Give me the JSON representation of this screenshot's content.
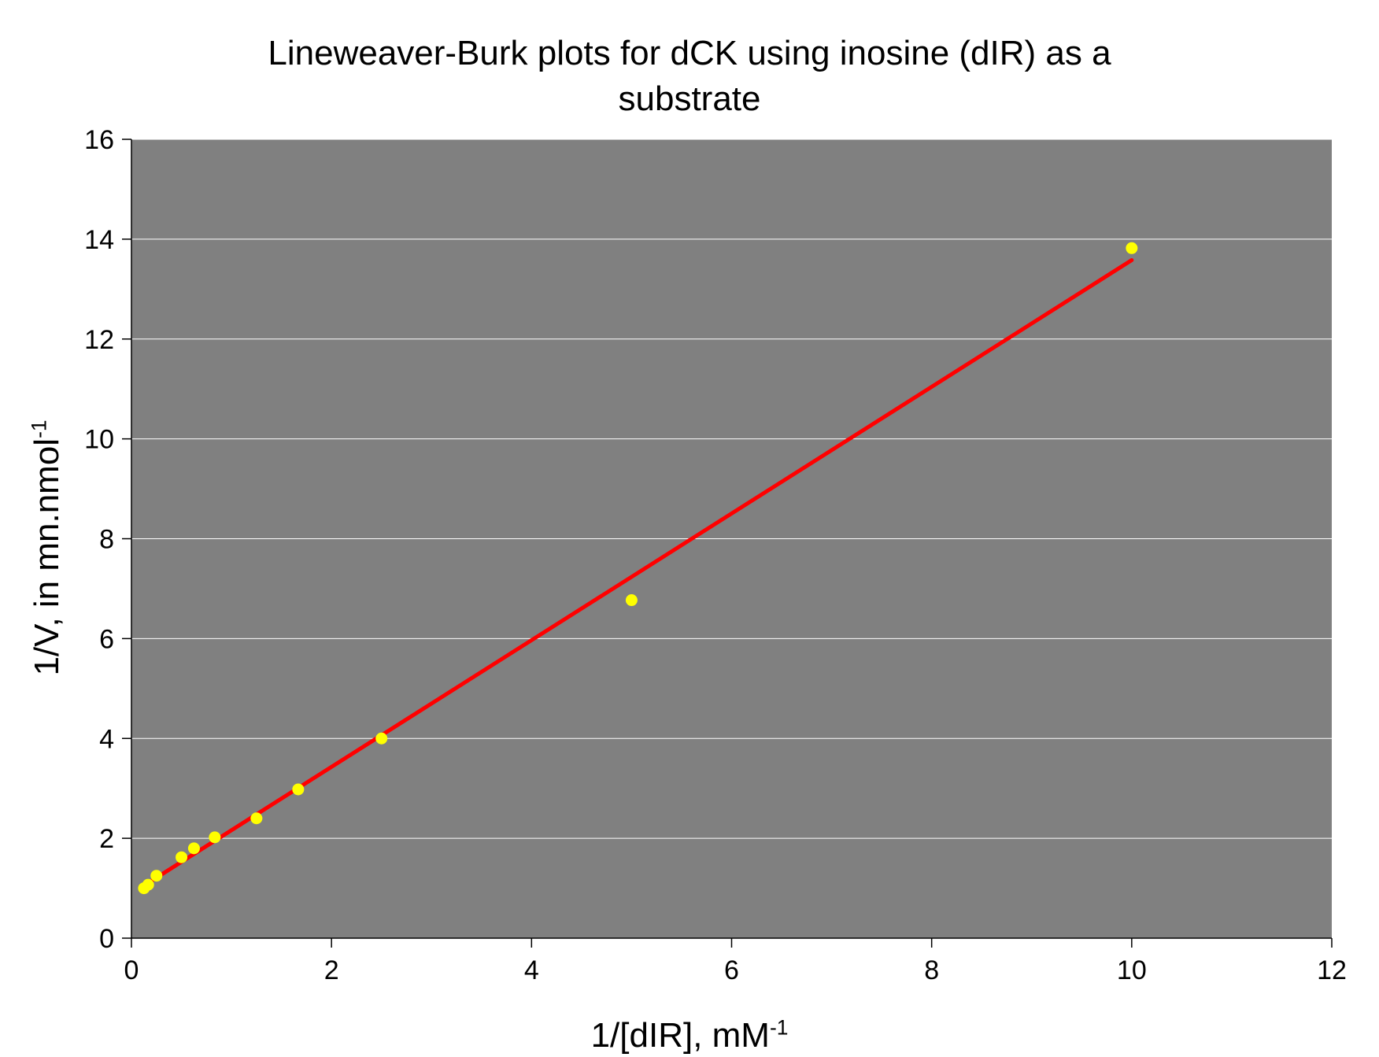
{
  "chart_data": {
    "type": "scatter",
    "title_lines": [
      "Lineweaver-Burk plots for dCK using inosine (dIR) as a",
      "substrate"
    ],
    "xlabel": "1/[dIR], mM",
    "xlabel_sup": "-1",
    "ylabel": "1/V, in mn.nmol",
    "ylabel_sup": "-1",
    "xlim": [
      0,
      12
    ],
    "ylim": [
      0,
      16
    ],
    "x_ticks": [
      0,
      2,
      4,
      6,
      8,
      10,
      12
    ],
    "y_ticks": [
      0,
      2,
      4,
      6,
      8,
      10,
      12,
      14,
      16
    ],
    "grid": "horizontal",
    "plot_background": "#808080",
    "series": [
      {
        "type": "scatter",
        "color": "#ffff00",
        "x": [
          0.125,
          0.167,
          0.25,
          0.5,
          0.625,
          0.833,
          1.25,
          1.667,
          2.5,
          5.0,
          10.0
        ],
        "y": [
          1.0,
          1.07,
          1.25,
          1.62,
          1.8,
          2.02,
          2.4,
          2.98,
          4.0,
          6.77,
          13.82
        ]
      },
      {
        "type": "line",
        "color": "#ff0000",
        "x": [
          0.1,
          10.0
        ],
        "y": [
          1.02,
          13.58
        ]
      }
    ]
  }
}
